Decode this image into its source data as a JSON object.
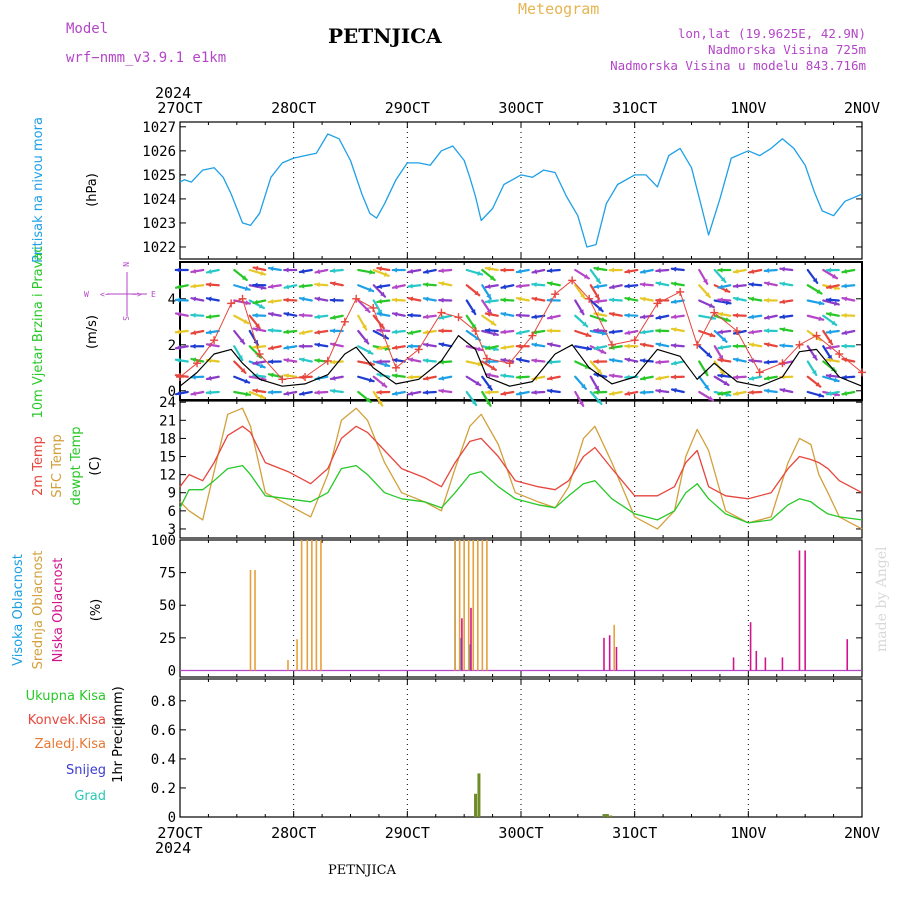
{
  "header": {
    "model_label": "Model",
    "model_name": "wrf−nmm_v3.9.1  e1km",
    "meteogram_label": "Meteogram",
    "station": "PETNJICA",
    "lonlat": "lon,lat (19.9625E, 42.9N)",
    "elevation": "Nadmorska Visina 725m",
    "model_elevation": "Nadmorska Visina u modelu 843.716m",
    "year": "2024",
    "footer_station": "PETNJICA",
    "watermark": "made by Angel"
  },
  "colors": {
    "pressure": "#1ea0e6",
    "temp2m": "#e6463c",
    "sfc": "#d2a03c",
    "dew": "#28c828",
    "high_cloud": "#1ea0e6",
    "mid_cloud": "#e6a03c",
    "low_cloud": "#d2148c",
    "precip": "#6e8c28",
    "wind_line": "#000000",
    "wind_max": "#e6463c",
    "wind_legend": "#b446c8"
  },
  "axis": {
    "dates": [
      "27OCT",
      "28OCT",
      "29OCT",
      "30OCT",
      "31OCT",
      "1NOV",
      "2NOV"
    ]
  },
  "chart_data": [
    {
      "type": "line",
      "ylabel": "Pritisak na nivou mora",
      "unit": "(hPa)",
      "ylim": [
        1021.5,
        1027.2
      ],
      "yticks": [
        1022,
        1023,
        1024,
        1025,
        1026,
        1027
      ],
      "x_days": [
        0,
        0.04,
        0.1,
        0.2,
        0.3,
        0.38,
        0.45,
        0.55,
        0.62,
        0.7,
        0.8,
        0.9,
        1.0,
        1.1,
        1.2,
        1.3,
        1.4,
        1.5,
        1.6,
        1.67,
        1.73,
        1.8,
        1.9,
        2.0,
        2.1,
        2.2,
        2.3,
        2.4,
        2.5,
        2.55,
        2.6,
        2.65,
        2.75,
        2.85,
        3.0,
        3.1,
        3.2,
        3.3,
        3.4,
        3.5,
        3.58,
        3.66,
        3.75,
        3.85,
        4.0,
        4.1,
        4.2,
        4.3,
        4.4,
        4.5,
        4.57,
        4.65,
        4.75,
        4.85,
        5.0,
        5.1,
        5.2,
        5.3,
        5.4,
        5.5,
        5.58,
        5.65,
        5.75,
        5.85,
        6.0
      ],
      "series": [
        {
          "values": [
            1024.7,
            1024.8,
            1024.7,
            1025.2,
            1025.3,
            1024.9,
            1024.2,
            1023.0,
            1022.9,
            1023.4,
            1024.9,
            1025.5,
            1025.7,
            1025.8,
            1025.9,
            1026.7,
            1026.5,
            1025.6,
            1024.2,
            1023.4,
            1023.2,
            1023.8,
            1024.8,
            1025.5,
            1025.5,
            1025.4,
            1026.0,
            1026.2,
            1025.6,
            1024.9,
            1024.1,
            1023.1,
            1023.6,
            1024.6,
            1025.0,
            1024.9,
            1025.2,
            1025.1,
            1024.1,
            1023.3,
            1022.0,
            1022.1,
            1023.8,
            1024.6,
            1025.0,
            1025.0,
            1024.5,
            1025.8,
            1026.1,
            1025.3,
            1024.0,
            1022.5,
            1024.0,
            1025.7,
            1026.0,
            1025.8,
            1026.1,
            1026.5,
            1026.1,
            1025.4,
            1024.3,
            1023.5,
            1023.3,
            1023.9,
            1024.2
          ]
        }
      ]
    },
    {
      "type": "line",
      "ylabel": "10m Vjetar Brzina i Pravac",
      "unit": "(m/s)",
      "ylim": [
        -0.4,
        5.6
      ],
      "yticks": [
        0,
        2,
        4
      ],
      "x_days": [
        0,
        0.15,
        0.3,
        0.45,
        0.55,
        0.7,
        0.9,
        1.1,
        1.3,
        1.45,
        1.55,
        1.7,
        1.9,
        2.1,
        2.3,
        2.45,
        2.6,
        2.7,
        2.9,
        3.1,
        3.3,
        3.45,
        3.6,
        3.8,
        4.0,
        4.2,
        4.4,
        4.55,
        4.7,
        4.9,
        5.1,
        5.3,
        5.45,
        5.6,
        5.8,
        6.0
      ],
      "series": [
        {
          "name": "mean",
          "values": [
            0.2,
            0.8,
            1.6,
            1.8,
            1.2,
            0.5,
            0.2,
            0.3,
            0.7,
            1.6,
            1.9,
            1.0,
            0.3,
            0.5,
            1.3,
            2.4,
            1.8,
            0.6,
            0.2,
            0.4,
            1.6,
            2.0,
            1.0,
            0.3,
            0.6,
            1.8,
            1.5,
            0.5,
            1.2,
            0.4,
            0.2,
            0.6,
            1.7,
            1.8,
            0.6,
            0.2
          ]
        },
        {
          "name": "max",
          "values": [
            0.6,
            1.2,
            2.2,
            3.8,
            4.0,
            1.6,
            0.5,
            0.6,
            1.3,
            3.0,
            4.0,
            3.6,
            1.0,
            1.8,
            3.4,
            3.2,
            2.6,
            1.4,
            1.2,
            2.4,
            4.2,
            4.8,
            4.0,
            2.0,
            2.2,
            3.8,
            4.3,
            2.0,
            3.4,
            2.6,
            0.8,
            1.2,
            2.0,
            2.4,
            1.6,
            0.8
          ]
        }
      ],
      "legend": {
        "n": "N",
        "e": "E",
        "w": "W",
        "s": "S",
        "arrow_w": "<−",
        "arrow_e": "−>"
      }
    },
    {
      "type": "line",
      "ylabel": [
        "2m Temp",
        "SFC Temp",
        "dewpt Temp"
      ],
      "unit": "(C)",
      "ylim": [
        1.5,
        24.2
      ],
      "yticks": [
        3,
        6,
        9,
        12,
        15,
        18,
        21,
        24
      ],
      "x_days": [
        0,
        0.08,
        0.2,
        0.3,
        0.42,
        0.55,
        0.62,
        0.75,
        0.95,
        1.15,
        1.3,
        1.42,
        1.55,
        1.65,
        1.8,
        1.95,
        2.15,
        2.3,
        2.42,
        2.55,
        2.65,
        2.8,
        2.95,
        3.15,
        3.3,
        3.42,
        3.55,
        3.65,
        3.8,
        4.0,
        4.2,
        4.35,
        4.45,
        4.55,
        4.65,
        4.8,
        5.0,
        5.2,
        5.35,
        5.45,
        5.55,
        5.62,
        5.7,
        5.8,
        6.0
      ],
      "series": [
        {
          "name": "2m Temp",
          "values": [
            10,
            12,
            11,
            14,
            18.5,
            20,
            19,
            14,
            12.5,
            10.5,
            13,
            18,
            20,
            19,
            16,
            13,
            11.5,
            10,
            14,
            17.5,
            18,
            15,
            11,
            10,
            9.5,
            11,
            15,
            16.5,
            13,
            8.5,
            8.5,
            10,
            14,
            16,
            10,
            8.5,
            8,
            9,
            13,
            15,
            14.5,
            14,
            13,
            11,
            9
          ]
        },
        {
          "name": "SFC Temp",
          "values": [
            7.5,
            6,
            4.5,
            12.5,
            22,
            23,
            20,
            9,
            7,
            5,
            12,
            21,
            23,
            21,
            14,
            9,
            7.5,
            6,
            13,
            20,
            22,
            17,
            9,
            7.5,
            6.5,
            10,
            18,
            20,
            14,
            5,
            3,
            6,
            15,
            19.5,
            16,
            6,
            4,
            5,
            14,
            18,
            17,
            12,
            9,
            5,
            3
          ]
        },
        {
          "name": "dewpt Temp",
          "values": [
            6.5,
            9.5,
            9.5,
            11,
            13,
            13.5,
            12,
            8.5,
            8,
            7.5,
            9,
            13,
            13.5,
            12,
            9,
            8,
            7.5,
            6.5,
            9,
            12,
            12.5,
            10,
            8,
            7,
            6.5,
            8.5,
            10.5,
            11,
            8,
            5.5,
            4.5,
            6,
            9,
            10.5,
            8,
            5.5,
            4,
            4.5,
            7,
            8,
            7.5,
            6.5,
            5.5,
            5,
            4.5
          ]
        }
      ]
    },
    {
      "type": "bar",
      "ylabel": [
        "Visoka Oblacnost",
        "Srednja Oblacnost",
        "Niska Oblacnost"
      ],
      "unit": "(%)",
      "ylim": [
        -5,
        100
      ],
      "yticks": [
        0,
        25,
        50,
        75,
        100
      ],
      "series": [
        {
          "name": "Visoka Oblacnost",
          "x_days": [
            2.42,
            2.47,
            2.55
          ],
          "values": [
            100,
            25,
            20
          ]
        },
        {
          "name": "Srednja Oblacnost",
          "x_days": [
            0.62,
            0.66,
            0.95,
            1.03,
            1.07,
            1.12,
            1.16,
            1.2,
            1.24,
            2.42,
            2.46,
            2.5,
            2.54,
            2.58,
            2.62,
            2.66,
            2.7,
            3.82
          ],
          "values": [
            77,
            77,
            8,
            24,
            100,
            100,
            100,
            100,
            100,
            100,
            100,
            100,
            100,
            100,
            100,
            100,
            100,
            35
          ]
        },
        {
          "name": "Niska Oblacnost",
          "x_days": [
            2.48,
            2.56,
            3.73,
            3.78,
            3.84,
            4.87,
            5.02,
            5.07,
            5.15,
            5.3,
            5.45,
            5.5,
            5.87
          ],
          "values": [
            40,
            48,
            25,
            27,
            18,
            10,
            37,
            15,
            10,
            10,
            92,
            92,
            24
          ]
        }
      ]
    },
    {
      "type": "bar",
      "ylabel": "1hr Precip",
      "unit": "(mm)",
      "legend": [
        "Ukupna Kisa",
        "Konvek.Kisa",
        "Zaledj.Kisa",
        "Snijeg",
        "Grad"
      ],
      "ylim": [
        0,
        0.95
      ],
      "yticks": [
        0,
        0.2,
        0.4,
        0.6,
        0.8
      ],
      "x_days": [
        2.6,
        2.63,
        3.73,
        3.76,
        3.79
      ],
      "values": [
        0.16,
        0.3,
        0.02,
        0.02,
        0.01
      ]
    }
  ]
}
